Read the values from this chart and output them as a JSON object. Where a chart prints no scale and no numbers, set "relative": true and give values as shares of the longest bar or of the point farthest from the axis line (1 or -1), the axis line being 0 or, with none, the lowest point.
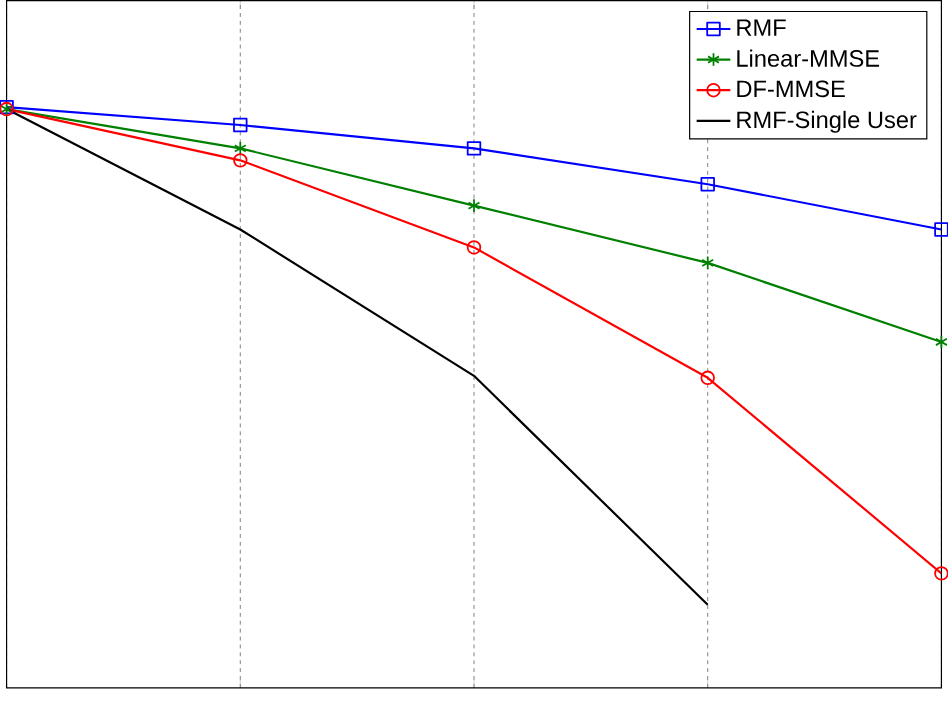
{
  "chart_data": {
    "type": "line",
    "relative": true,
    "categories": [
      null,
      null,
      null,
      null,
      null
    ],
    "grid": "x",
    "legend": "top right",
    "series": [
      {
        "name": "RMF",
        "color": "#0000ff",
        "marker": "square",
        "values": [
          1,
          0.964,
          0.917,
          0.845,
          0.754
        ]
      },
      {
        "name": "Linear-MMSE",
        "color": "#008000",
        "marker": "cross",
        "values": [
          0.996,
          0.917,
          0.802,
          0.687,
          0.528
        ]
      },
      {
        "name": "DF-MMSE",
        "color": "#ff0000",
        "marker": "circle",
        "values": [
          0.996,
          0.893,
          0.718,
          0.456,
          0.063
        ]
      },
      {
        "name": "RMF-Single User",
        "color": "#000000",
        "marker": "none",
        "values": [
          0.996,
          0.754,
          0.46,
          0,
          null
        ]
      }
    ]
  }
}
